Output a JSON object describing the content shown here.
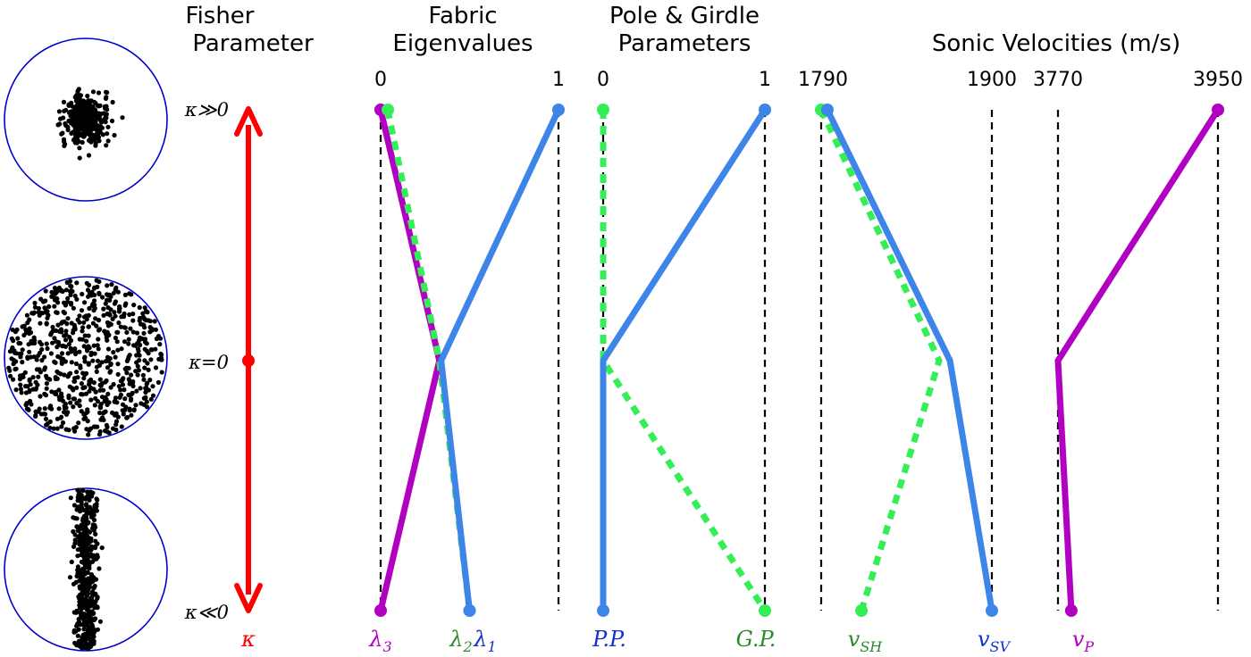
{
  "chart_data": {
    "type": "line",
    "rows": [
      "κ≫0",
      "κ=0",
      "κ≪0"
    ],
    "stereonets": {
      "names": [
        "cluster-stereonet",
        "uniform-stereonet",
        "girdle-stereonet"
      ],
      "circle_color": "#0000cc",
      "point_color": "#000000"
    },
    "fisher_axis": {
      "title_lines": [
        "Fisher",
        "Parameter"
      ],
      "labels": [
        "κ≫0",
        "κ=0",
        "κ≪0"
      ],
      "symbol": "κ",
      "color": "#ff0000"
    },
    "panels": [
      {
        "id": "fabric-eigenvalues",
        "title_lines": [
          "Fabric",
          "Eigenvalues"
        ],
        "xlim": [
          0,
          1
        ],
        "tick_labels": [
          "0",
          "1"
        ],
        "series": [
          {
            "name": "λ3",
            "label_main": "λ",
            "label_sub": "3",
            "color": "#b100c1",
            "style": "solid",
            "values": [
              0.0,
              0.33,
              0.0
            ]
          },
          {
            "name": "λ2",
            "label_main": "λ",
            "label_sub": "2",
            "color": "#33ee55",
            "style": "dotted",
            "values": [
              0.04,
              0.33,
              0.5
            ]
          },
          {
            "name": "λ1",
            "label_main": "λ",
            "label_sub": "1",
            "color": "#3d85e8",
            "style": "solid",
            "values": [
              1.0,
              0.34,
              0.5
            ]
          }
        ]
      },
      {
        "id": "pole-girdle-parameters",
        "title_lines": [
          "Pole & Girdle",
          "Parameters"
        ],
        "xlim": [
          0,
          1
        ],
        "tick_labels": [
          "0",
          "1"
        ],
        "series": [
          {
            "name": "G.P.",
            "label_main": "G.P.",
            "label_sub": "",
            "color": "#33ee55",
            "style": "dotted",
            "values": [
              0.0,
              0.0,
              1.0
            ]
          },
          {
            "name": "P.P.",
            "label_main": "P.P.",
            "label_sub": "",
            "color": "#3d85e8",
            "style": "solid",
            "values": [
              1.0,
              0.0,
              0.0
            ]
          }
        ]
      },
      {
        "id": "shear-velocities",
        "title_lines": [],
        "xlim": [
          1790,
          1900
        ],
        "tick_labels": [
          "1790",
          "1900"
        ],
        "series": [
          {
            "name": "vSH",
            "label_main": "v",
            "label_sub": "SH",
            "color": "#33ee55",
            "style": "dotted",
            "values": [
              1790,
              1866,
              1816
            ]
          },
          {
            "name": "vSV",
            "label_main": "v",
            "label_sub": "SV",
            "color": "#3d85e8",
            "style": "solid",
            "values": [
              1794,
              1873,
              1900
            ]
          }
        ]
      },
      {
        "id": "p-velocity",
        "title_lines": [],
        "xlim": [
          3770,
          3950
        ],
        "tick_labels": [
          "3770",
          "3950"
        ],
        "series": [
          {
            "name": "vP",
            "label_main": "v",
            "label_sub": "P",
            "color": "#b100c1",
            "style": "solid",
            "values": [
              3950,
              3770,
              3785
            ]
          }
        ]
      }
    ],
    "shared_title": "Sonic Velocities (m/s)",
    "guide_lines": "dashed-black"
  }
}
